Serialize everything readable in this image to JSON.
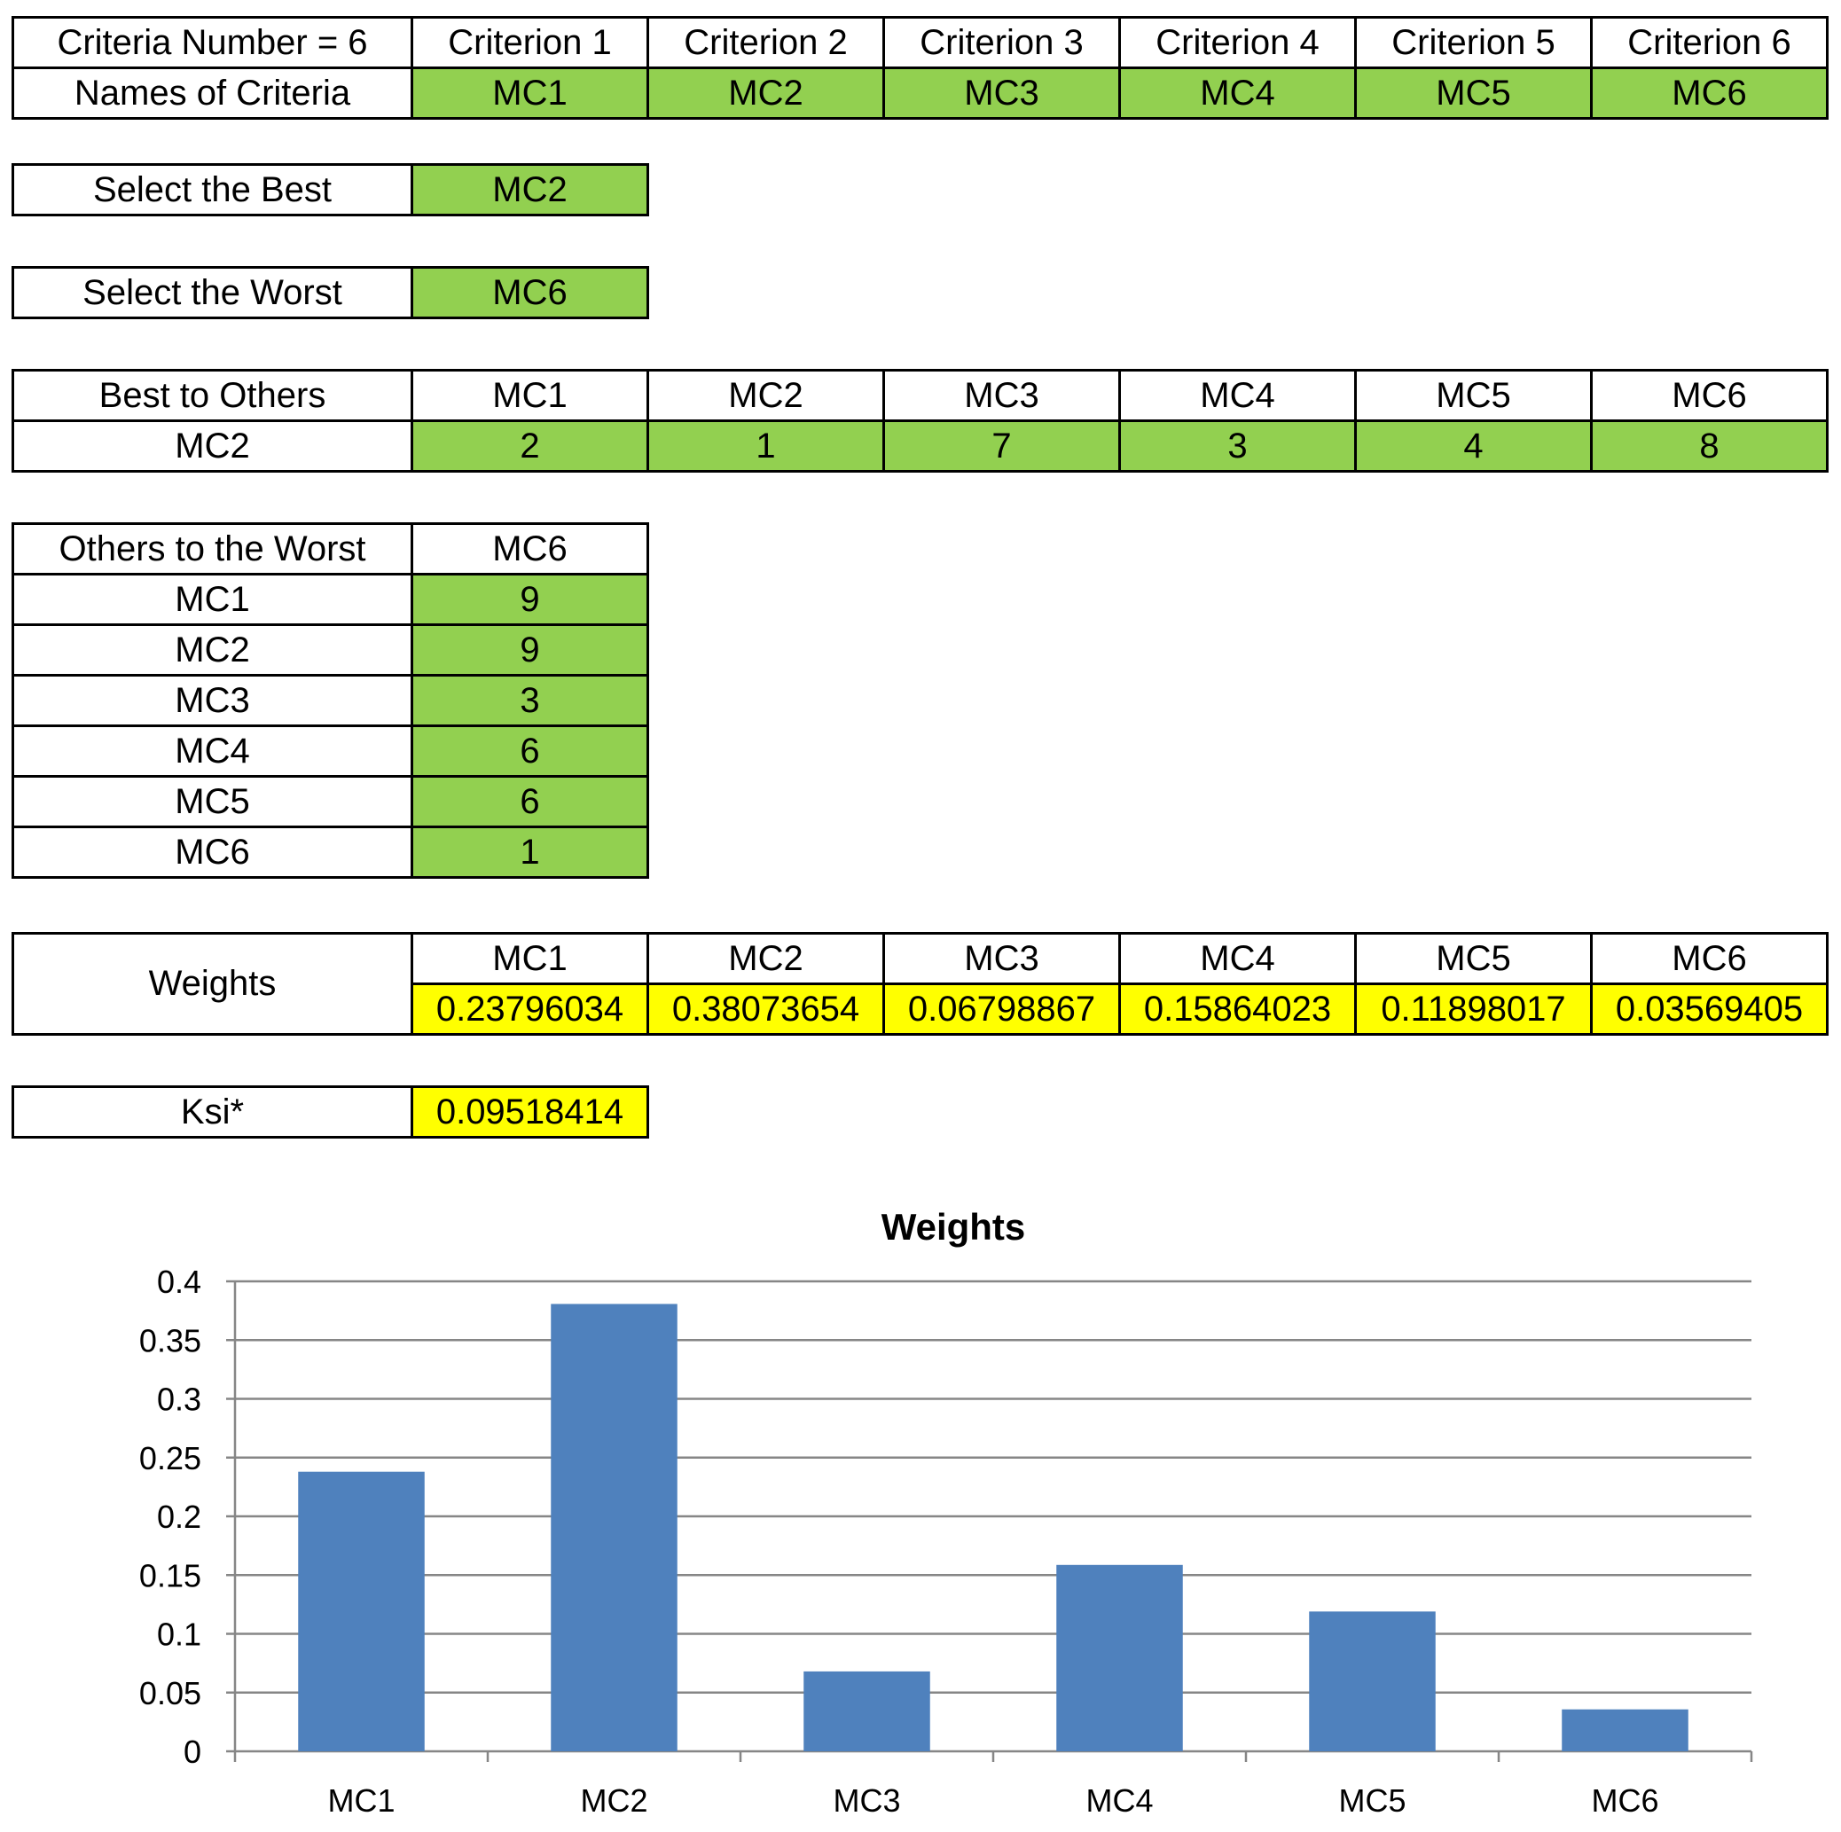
{
  "criteria_table": {
    "header_label": "Criteria Number = 6",
    "names_label": "Names of Criteria",
    "criteria": [
      "Criterion 1",
      "Criterion 2",
      "Criterion 3",
      "Criterion 4",
      "Criterion 5",
      "Criterion 6"
    ],
    "names": [
      "MC1",
      "MC2",
      "MC3",
      "MC4",
      "MC5",
      "MC6"
    ]
  },
  "best": {
    "label": "Select the Best",
    "value": "MC2"
  },
  "worst": {
    "label": "Select the Worst",
    "value": "MC6"
  },
  "best_to_others": {
    "label": "Best to Others",
    "row_label": "MC2",
    "columns": [
      "MC1",
      "MC2",
      "MC3",
      "MC4",
      "MC5",
      "MC6"
    ],
    "values": [
      "2",
      "1",
      "7",
      "3",
      "4",
      "8"
    ]
  },
  "others_to_worst": {
    "label": "Others to the Worst",
    "column": "MC6",
    "rows": [
      {
        "name": "MC1",
        "value": "9"
      },
      {
        "name": "MC2",
        "value": "9"
      },
      {
        "name": "MC3",
        "value": "3"
      },
      {
        "name": "MC4",
        "value": "6"
      },
      {
        "name": "MC5",
        "value": "6"
      },
      {
        "name": "MC6",
        "value": "1"
      }
    ]
  },
  "weights": {
    "label": "Weights",
    "columns": [
      "MC1",
      "MC2",
      "MC3",
      "MC4",
      "MC5",
      "MC6"
    ],
    "values": [
      "0.23796034",
      "0.38073654",
      "0.06798867",
      "0.15864023",
      "0.11898017",
      "0.03569405"
    ]
  },
  "ksi": {
    "label": "Ksi*",
    "value": "0.09518414"
  },
  "colors": {
    "input_green": "#92d050",
    "output_yellow": "#ffff00",
    "bar_blue": "#4f81bd",
    "grid": "#868686"
  },
  "chart_data": {
    "type": "bar",
    "title": "Weights",
    "categories": [
      "MC1",
      "MC2",
      "MC3",
      "MC4",
      "MC5",
      "MC6"
    ],
    "values": [
      0.23796034,
      0.38073654,
      0.06798867,
      0.15864023,
      0.11898017,
      0.03569405
    ],
    "yticks": [
      "0",
      "0.05",
      "0.1",
      "0.15",
      "0.2",
      "0.25",
      "0.3",
      "0.35",
      "0.4"
    ],
    "ylim": [
      0,
      0.4
    ],
    "grid": true,
    "legend": "none"
  }
}
